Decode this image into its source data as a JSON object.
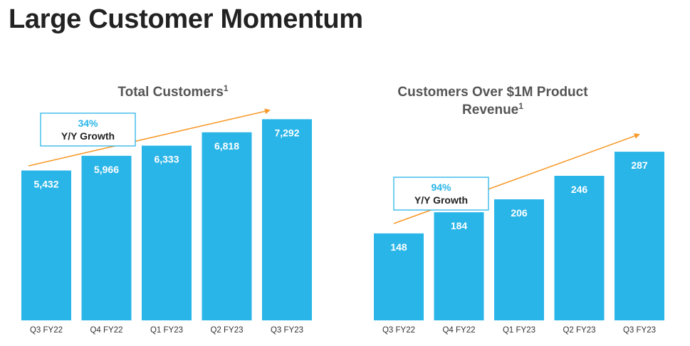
{
  "page": {
    "title": "Large Customer Momentum"
  },
  "colors": {
    "bar": "#29B5E8",
    "arrow": "#F79A2A",
    "growth_value": "#29B5E8",
    "box_border": "#29B5E8"
  },
  "chart_data": [
    {
      "type": "bar",
      "title": "Total Customers",
      "title_lines": [
        "Total Customers"
      ],
      "title_superscript": "1",
      "categories": [
        "Q3 FY22",
        "Q4 FY22",
        "Q1 FY23",
        "Q2 FY23",
        "Q3 FY23"
      ],
      "values": [
        5432,
        5966,
        6333,
        6818,
        7292
      ],
      "value_labels": [
        "5,432",
        "5,966",
        "6,333",
        "6,818",
        "7,292"
      ],
      "ylim": [
        0,
        8000
      ],
      "xlabel": "",
      "ylabel": "",
      "grid": false,
      "annotation": {
        "value": "34%",
        "label": "Y/Y Growth"
      }
    },
    {
      "type": "bar",
      "title": "Customers Over $1M Product Revenue",
      "title_lines": [
        "Customers Over $1M Product",
        "Revenue"
      ],
      "title_superscript": "1",
      "categories": [
        "Q3 FY22",
        "Q4 FY22",
        "Q1 FY23",
        "Q2 FY23",
        "Q3 FY23"
      ],
      "values": [
        148,
        184,
        206,
        246,
        287
      ],
      "value_labels": [
        "148",
        "184",
        "206",
        "246",
        "287"
      ],
      "ylim": [
        0,
        315
      ],
      "xlabel": "",
      "ylabel": "",
      "grid": false,
      "annotation": {
        "value": "94%",
        "label": "Y/Y Growth"
      }
    }
  ]
}
